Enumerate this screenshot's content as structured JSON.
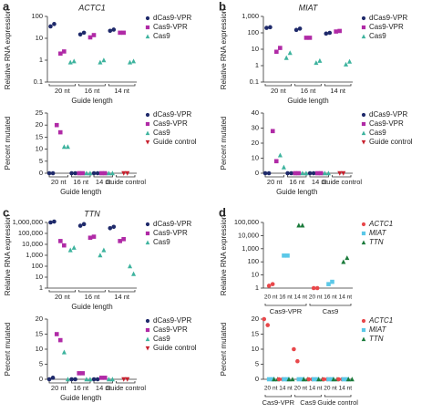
{
  "chart_data": [
    {
      "type": "scatter",
      "panel": "a",
      "title": "ACTC1",
      "ylabel": "Relative RNA expression",
      "xlabel": "Guide length",
      "log": true,
      "ylim": [
        0.1,
        100
      ],
      "yticks": [
        0.1,
        1,
        10,
        100
      ],
      "categories": [
        "20 nt",
        "16 nt",
        "14 nt"
      ],
      "series": [
        {
          "name": "dCas9-VPR",
          "color": "#1f2a6b",
          "marker": "circle",
          "values": [
            [
              35,
              45
            ],
            [
              15,
              18
            ],
            [
              22,
              25
            ]
          ]
        },
        {
          "name": "Cas9-VPR",
          "color": "#b02aa6",
          "marker": "square",
          "values": [
            [
              2,
              2.5
            ],
            [
              11,
              14
            ],
            [
              18,
              18
            ]
          ]
        },
        {
          "name": "Cas9",
          "color": "#3db39e",
          "marker": "triangle",
          "values": [
            [
              0.8,
              0.9
            ],
            [
              0.8,
              1
            ],
            [
              0.8,
              0.9
            ]
          ]
        }
      ]
    },
    {
      "type": "scatter",
      "ylabel": "Percent mutated",
      "xlabel": "Guide length",
      "ylim": [
        0,
        25
      ],
      "yticks": [
        0,
        5,
        10,
        15,
        20,
        25
      ],
      "categories": [
        "20 nt",
        "16 nt",
        "14 nt",
        "Guide control"
      ],
      "series": [
        {
          "name": "dCas9-VPR",
          "color": "#1f2a6b",
          "marker": "circle",
          "values": [
            [
              0,
              0
            ],
            [
              0,
              0
            ],
            [
              0,
              0
            ],
            null
          ]
        },
        {
          "name": "Cas9-VPR",
          "color": "#b02aa6",
          "marker": "square",
          "values": [
            [
              20,
              17
            ],
            [
              0,
              0
            ],
            [
              0,
              0
            ],
            null
          ]
        },
        {
          "name": "Cas9",
          "color": "#3db39e",
          "marker": "triangle",
          "values": [
            [
              11,
              11
            ],
            [
              0,
              0
            ],
            [
              0,
              0
            ],
            null
          ]
        },
        {
          "name": "Guide control",
          "color": "#c8202e",
          "marker": "triangle-down",
          "values": [
            null,
            null,
            null,
            [
              0,
              0
            ]
          ]
        }
      ]
    },
    {
      "type": "scatter",
      "panel": "b",
      "title": "MIAT",
      "ylabel": "Relative RNA expression",
      "xlabel": "Guide length",
      "log": true,
      "ylim": [
        0.1,
        1000
      ],
      "yticks": [
        0.1,
        1,
        10,
        100,
        {
          "value": 1000,
          "label": "1,000"
        }
      ],
      "categories": [
        "20 nt",
        "16 nt",
        "14 nt"
      ],
      "series": [
        {
          "name": "dCas9-VPR",
          "color": "#1f2a6b",
          "marker": "circle",
          "values": [
            [
              200,
              220
            ],
            [
              150,
              180
            ],
            [
              90,
              100
            ]
          ]
        },
        {
          "name": "Cas9-VPR",
          "color": "#b02aa6",
          "marker": "square",
          "values": [
            [
              7,
              12
            ],
            [
              50,
              50
            ],
            [
              120,
              130
            ]
          ]
        },
        {
          "name": "Cas9",
          "color": "#3db39e",
          "marker": "triangle",
          "values": [
            [
              3,
              6
            ],
            [
              1.5,
              2
            ],
            [
              1.2,
              1.8
            ]
          ]
        }
      ]
    },
    {
      "type": "scatter",
      "ylabel": "Percent mutated",
      "xlabel": "Guide length",
      "ylim": [
        0,
        40
      ],
      "yticks": [
        0,
        10,
        20,
        30,
        40
      ],
      "categories": [
        "20 nt",
        "16 nt",
        "14 nt",
        "Guide control"
      ],
      "series": [
        {
          "name": "dCas9-VPR",
          "color": "#1f2a6b",
          "marker": "circle",
          "values": [
            [
              0,
              0
            ],
            [
              0,
              0
            ],
            [
              0,
              0
            ],
            null
          ]
        },
        {
          "name": "Cas9-VPR",
          "color": "#b02aa6",
          "marker": "square",
          "values": [
            [
              28,
              8
            ],
            [
              0,
              0
            ],
            [
              0,
              0
            ],
            null
          ]
        },
        {
          "name": "Cas9",
          "color": "#3db39e",
          "marker": "triangle",
          "values": [
            [
              12,
              4
            ],
            [
              0,
              0
            ],
            [
              0,
              0
            ],
            null
          ]
        },
        {
          "name": "Guide control",
          "color": "#c8202e",
          "marker": "triangle-down",
          "values": [
            null,
            null,
            null,
            [
              0,
              0
            ]
          ]
        }
      ]
    },
    {
      "type": "scatter",
      "panel": "c",
      "title": "TTN",
      "ylabel": "Relative RNA expression",
      "xlabel": "Guide length",
      "log": true,
      "ylim": [
        1,
        1000000
      ],
      "yticks": [
        1,
        10,
        100,
        {
          "value": 1000,
          "label": "1,000"
        },
        {
          "value": 10000,
          "label": "10,000"
        },
        {
          "value": 100000,
          "label": "100,000"
        },
        {
          "value": 1000000,
          "label": "1,000,000"
        }
      ],
      "categories": [
        "20 nt",
        "16 nt",
        "14 nt"
      ],
      "series": [
        {
          "name": "dCas9-VPR",
          "color": "#1f2a6b",
          "marker": "circle",
          "values": [
            [
              1000000,
              1200000
            ],
            [
              500000,
              700000
            ],
            [
              300000,
              400000
            ]
          ]
        },
        {
          "name": "Cas9-VPR",
          "color": "#b02aa6",
          "marker": "square",
          "values": [
            [
              20000,
              8000
            ],
            [
              40000,
              50000
            ],
            [
              20000,
              30000
            ]
          ]
        },
        {
          "name": "Cas9",
          "color": "#3db39e",
          "marker": "triangle",
          "values": [
            [
              3000,
              5000
            ],
            [
              1000,
              3000
            ],
            [
              100,
              20
            ]
          ]
        }
      ]
    },
    {
      "type": "scatter",
      "ylabel": "Percent mutated",
      "xlabel": "Guide length",
      "ylim": [
        0,
        20
      ],
      "yticks": [
        0,
        5,
        10,
        15,
        20
      ],
      "categories": [
        "20 nt",
        "16 nt",
        "14 nt",
        "Guide control"
      ],
      "series": [
        {
          "name": "dCas9-VPR",
          "color": "#1f2a6b",
          "marker": "circle",
          "values": [
            [
              0,
              0.5
            ],
            [
              0,
              0
            ],
            [
              0,
              0
            ],
            null
          ]
        },
        {
          "name": "Cas9-VPR",
          "color": "#b02aa6",
          "marker": "square",
          "values": [
            [
              15,
              13
            ],
            [
              2,
              2
            ],
            [
              0.5,
              0.5
            ],
            null
          ]
        },
        {
          "name": "Cas9",
          "color": "#3db39e",
          "marker": "triangle",
          "values": [
            [
              9,
              0
            ],
            [
              0,
              0
            ],
            [
              0,
              0
            ],
            null
          ]
        },
        {
          "name": "Guide control",
          "color": "#c8202e",
          "marker": "triangle-down",
          "values": [
            null,
            null,
            null,
            [
              0,
              0
            ]
          ]
        }
      ]
    },
    {
      "type": "scatter",
      "panel": "d",
      "ylabel": "Relative RNA expression",
      "log": true,
      "ylim": [
        1,
        100000
      ],
      "yticks": [
        1,
        10,
        100,
        {
          "value": 1000,
          "label": "1,000"
        },
        {
          "value": 10000,
          "label": "10,000"
        },
        {
          "value": 100000,
          "label": "100,000"
        }
      ],
      "groups": [
        {
          "label": "Cas9-VPR",
          "categories": [
            "20 nt",
            "16 nt",
            "14 nt"
          ]
        },
        {
          "label": "Cas9",
          "categories": [
            "20 nt",
            "16 nt",
            "14 nt"
          ]
        }
      ],
      "series": [
        {
          "name": "ACTC1",
          "color": "#e8474a",
          "marker": "circle",
          "values": [
            [
              1.5,
              2
            ],
            null,
            null,
            [
              1,
              1
            ],
            null,
            null
          ]
        },
        {
          "name": "MIAT",
          "color": "#5bc8e8",
          "marker": "square",
          "values": [
            null,
            [
              300,
              300
            ],
            null,
            null,
            [
              2,
              3
            ],
            null
          ]
        },
        {
          "name": "TTN",
          "color": "#1a7a3a",
          "marker": "triangle",
          "values": [
            null,
            null,
            [
              60000,
              60000
            ],
            null,
            null,
            [
              100,
              200
            ]
          ]
        }
      ]
    },
    {
      "type": "scatter",
      "ylabel": "Percent mutated",
      "ylim": [
        0,
        20
      ],
      "yticks": [
        0,
        5,
        10,
        15,
        20
      ],
      "groups": [
        {
          "label": "Cas9-VPR",
          "categories": [
            "20 nt",
            "14 nt"
          ]
        },
        {
          "label": "Cas9",
          "categories": [
            "20 nt",
            "14 nt"
          ]
        },
        {
          "label": "Guide control",
          "categories": [
            "20 nt",
            "14 nt"
          ]
        }
      ],
      "series": [
        {
          "name": "ACTC1",
          "color": "#e8474a",
          "marker": "circle",
          "values": [
            [
              20,
              18
            ],
            [
              0,
              0
            ],
            [
              10,
              6
            ],
            [
              0,
              0
            ],
            [
              0,
              0
            ],
            [
              0,
              0
            ]
          ]
        },
        {
          "name": "MIAT",
          "color": "#5bc8e8",
          "marker": "square",
          "values": [
            [
              0,
              0
            ],
            [
              0,
              0
            ],
            [
              0,
              0
            ],
            [
              0,
              0
            ],
            [
              0,
              0
            ],
            [
              0,
              0
            ]
          ]
        },
        {
          "name": "TTN",
          "color": "#1a7a3a",
          "marker": "triangle",
          "values": [
            [
              0,
              0
            ],
            [
              0,
              0
            ],
            [
              0,
              0
            ],
            [
              0,
              0
            ],
            [
              0,
              0
            ],
            [
              0,
              0
            ]
          ]
        }
      ]
    }
  ]
}
